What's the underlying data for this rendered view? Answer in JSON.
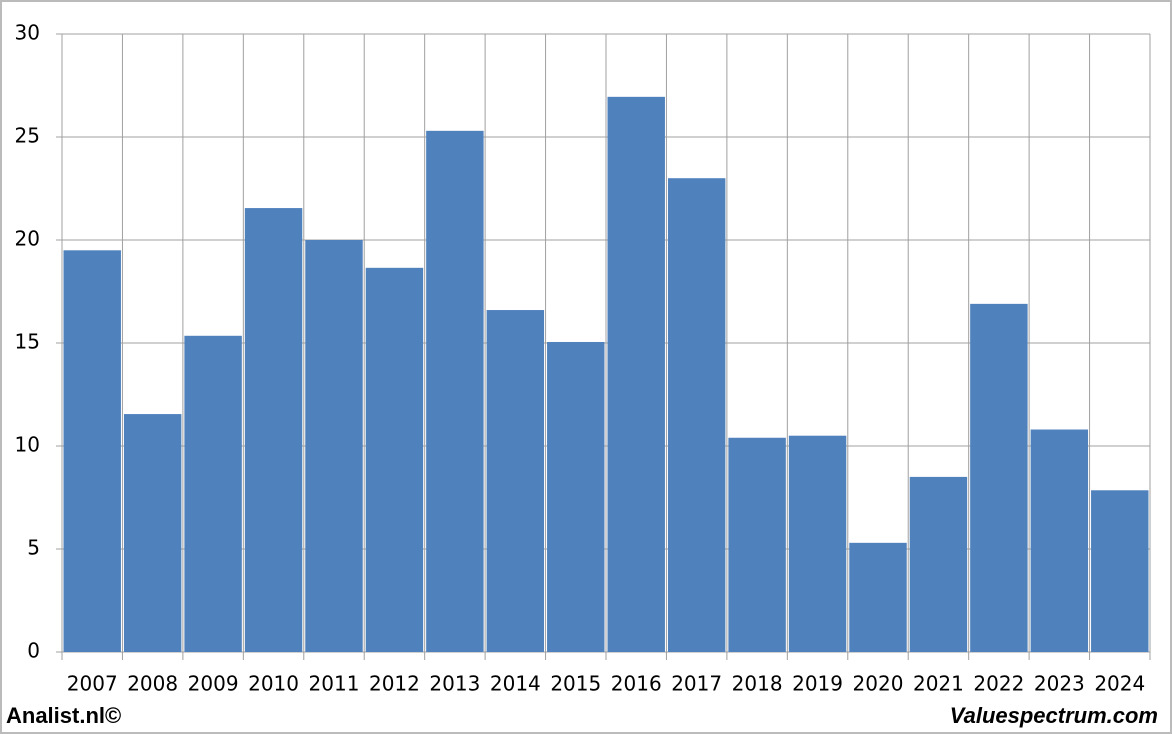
{
  "chart_data": {
    "type": "bar",
    "categories": [
      "2007",
      "2008",
      "2009",
      "2010",
      "2011",
      "2012",
      "2013",
      "2014",
      "2015",
      "2016",
      "2017",
      "2018",
      "2019",
      "2020",
      "2021",
      "2022",
      "2023",
      "2024"
    ],
    "values": [
      19.5,
      11.55,
      15.35,
      21.55,
      20.0,
      18.65,
      25.3,
      16.6,
      15.05,
      26.95,
      23.0,
      10.4,
      10.5,
      5.3,
      8.5,
      16.9,
      10.8,
      7.85
    ],
    "color": "#4f81bd",
    "ylim": [
      0,
      30
    ],
    "yticks": [
      0,
      5,
      10,
      15,
      20,
      25,
      30
    ],
    "grid": true,
    "footer_left": "Analist.nl©",
    "footer_right": "Valuespectrum.com"
  }
}
